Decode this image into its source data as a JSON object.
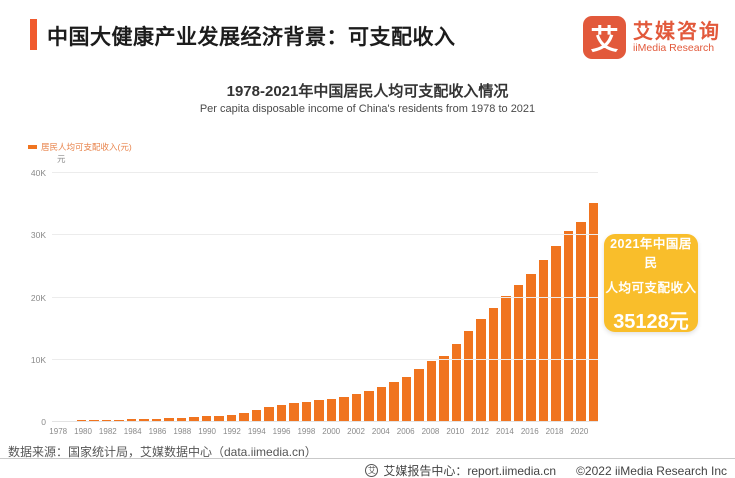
{
  "header": {
    "title": "中国大健康产业发展经济背景：可支配收入",
    "logo": {
      "mark": "艾",
      "name_cn": "艾媒咨询",
      "name_en": "iiMedia Research"
    }
  },
  "chart": {
    "title": "1978-2021年中国居民人均可支配收入情况",
    "subtitle": "Per capita disposable income of China's residents from 1978 to 2021",
    "legend_label": "居民人均可支配收入(元)",
    "y_unit": "元"
  },
  "chart_data": {
    "type": "bar",
    "title": "1978-2021年中国居民人均可支配收入情况",
    "subtitle": "Per capita disposable income of China's residents from 1978 to 2021",
    "xlabel": "",
    "ylabel": "元",
    "ylim": [
      0,
      40000
    ],
    "y_ticks": [
      {
        "value": 0,
        "label": "0"
      },
      {
        "value": 10000,
        "label": "10K"
      },
      {
        "value": 20000,
        "label": "20K"
      },
      {
        "value": 30000,
        "label": "30K"
      },
      {
        "value": 40000,
        "label": "40K"
      }
    ],
    "x_label_step": 2,
    "grid": true,
    "legend": [
      {
        "name": "居民人均可支配收入(元)",
        "color": "#F0741F"
      }
    ],
    "legend_position": "top-left",
    "bar_color": "#F0741F",
    "categories": [
      "1978",
      "1979",
      "1980",
      "1981",
      "1982",
      "1983",
      "1984",
      "1985",
      "1986",
      "1987",
      "1988",
      "1989",
      "1990",
      "1991",
      "1992",
      "1993",
      "1994",
      "1995",
      "1996",
      "1997",
      "1998",
      "1999",
      "2000",
      "2001",
      "2002",
      "2003",
      "2004",
      "2005",
      "2006",
      "2007",
      "2008",
      "2009",
      "2010",
      "2011",
      "2012",
      "2013",
      "2014",
      "2015",
      "2016",
      "2017",
      "2018",
      "2019",
      "2020",
      "2021"
    ],
    "values": [
      171,
      197,
      247,
      277,
      313,
      349,
      424,
      478,
      540,
      602,
      713,
      788,
      904,
      1001,
      1180,
      1487,
      1980,
      2363,
      2812,
      3070,
      3251,
      3479,
      3721,
      4058,
      4520,
      4993,
      5644,
      6385,
      7229,
      8517,
      9741,
      10675,
      12520,
      14551,
      16510,
      18311,
      20167,
      21966,
      23821,
      25974,
      28228,
      30733,
      32189,
      35128
    ]
  },
  "callout": {
    "line1": "2021年中国居民",
    "line2": "人均可支配收入",
    "value": "35128元",
    "bg_color": "#F9BE2B"
  },
  "source": "数据来源：国家统计局，艾媒数据中心（data.iimedia.cn）",
  "footer": {
    "report_icon_glyph": "艾",
    "report_center": "艾媒报告中心：report.iimedia.cn",
    "copyright": "©2022  iiMedia Research Inc"
  },
  "colors": {
    "bar": "#F0741F",
    "accent": "#F05A2E",
    "brand": "#E2593B",
    "callout_bg": "#F9BE2B",
    "legend_text": "#E8834B"
  }
}
